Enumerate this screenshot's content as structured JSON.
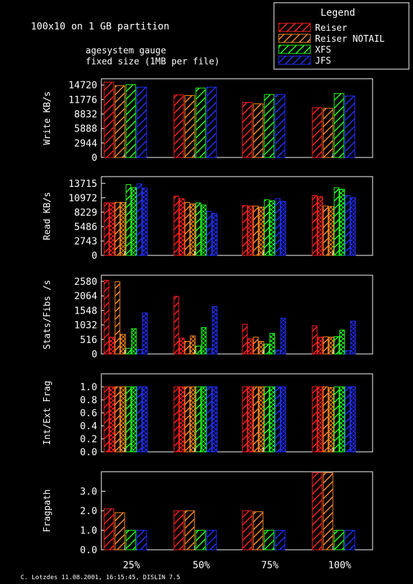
{
  "title": {
    "line1": "100x10 on 1 GB partition",
    "line2": "agesystem gauge",
    "line3": "fixed size (1MB per file)"
  },
  "footer": "C. Lotzdes 11.08.2001, 16:15:45, DISLIN 7.5",
  "legend": {
    "title": "Legend",
    "entries": [
      {
        "label": "Reiser",
        "color": "#ff2020"
      },
      {
        "label": "Reiser NOTAIL",
        "color": "#ff8a20"
      },
      {
        "label": "XFS",
        "color": "#20ff20"
      },
      {
        "label": "JFS",
        "color": "#2030ff"
      }
    ]
  },
  "chart_data": [
    {
      "type": "bar",
      "ylabel": "Write KB/s",
      "categories": [
        "25%",
        "50%",
        "75%",
        "100%"
      ],
      "ylim": [
        0,
        16000
      ],
      "yticks": [
        "0",
        "2944",
        "5888",
        "8832",
        "11776",
        "14720"
      ],
      "ytick_values": [
        0,
        2944,
        5888,
        8832,
        11776,
        14720
      ],
      "series": [
        {
          "name": "Reiser",
          "values": [
            [
              15300
            ]
          ]
        },
        {
          "name": "Reiser NOTAIL",
          "values": [
            [
              14600
            ]
          ]
        },
        {
          "name": "XFS",
          "values": [
            [
              14800
            ]
          ]
        },
        {
          "name": "JFS",
          "values": [
            [
              14300
            ]
          ]
        }
      ],
      "pairs": [
        [
          [
            15300
          ],
          [
            14600
          ],
          [
            14800
          ],
          [
            14300
          ]
        ],
        [
          [
            12700
          ],
          [
            12600
          ],
          [
            14100
          ],
          [
            14300
          ]
        ],
        [
          [
            11200
          ],
          [
            10900
          ],
          [
            12800
          ],
          [
            12800
          ]
        ],
        [
          [
            10100
          ],
          [
            10000
          ],
          [
            13000
          ],
          [
            12500
          ]
        ]
      ]
    },
    {
      "type": "bar",
      "ylabel": "Read KB/s",
      "categories": [
        "25%",
        "50%",
        "75%",
        "100%"
      ],
      "ylim": [
        0,
        15000
      ],
      "yticks": [
        "0",
        "2743",
        "5486",
        "8229",
        "10972",
        "13715"
      ],
      "ytick_values": [
        0,
        2743,
        5486,
        8229,
        10972,
        13715
      ],
      "pairs": [
        [
          [
            10000,
            10000
          ],
          [
            10100,
            10100
          ],
          [
            13500,
            12900
          ],
          [
            13600,
            12800
          ]
        ],
        [
          [
            11300,
            10800
          ],
          [
            10100,
            9800
          ],
          [
            10000,
            9600
          ],
          [
            8400,
            8000
          ]
        ],
        [
          [
            9500,
            9400
          ],
          [
            9400,
            9200
          ],
          [
            10600,
            10400
          ],
          [
            10800,
            10300
          ]
        ],
        [
          [
            11400,
            11200
          ],
          [
            9400,
            9300
          ],
          [
            12900,
            12600
          ],
          [
            11400,
            11000
          ]
        ]
      ]
    },
    {
      "type": "bar",
      "ylabel": "Stats/Fibs /s",
      "categories": [
        "25%",
        "50%",
        "75%",
        "100%"
      ],
      "ylim": [
        0,
        2800
      ],
      "yticks": [
        "0",
        "516",
        "1032",
        "1548",
        "2064",
        "2580"
      ],
      "ytick_values": [
        0,
        516,
        1032,
        1548,
        2064,
        2580
      ],
      "pairs": [
        [
          [
            2620,
            600
          ],
          [
            2570,
            700
          ],
          [
            200,
            900
          ],
          [
            160,
            1460
          ]
        ],
        [
          [
            2050,
            560
          ],
          [
            450,
            640
          ],
          [
            280,
            940
          ],
          [
            190,
            1690
          ]
        ],
        [
          [
            1060,
            540
          ],
          [
            600,
            450
          ],
          [
            350,
            730
          ],
          [
            140,
            1270
          ]
        ],
        [
          [
            1000,
            600
          ],
          [
            610,
            600
          ],
          [
            620,
            850
          ],
          [
            120,
            1170
          ]
        ]
      ]
    },
    {
      "type": "bar",
      "ylabel": "Int/Ext Frag",
      "categories": [
        "25%",
        "50%",
        "75%",
        "100%"
      ],
      "ylim": [
        0,
        1.2
      ],
      "yticks": [
        "0.0",
        "0.2",
        "0.4",
        "0.6",
        "0.8",
        "1.0"
      ],
      "ytick_values": [
        0,
        0.2,
        0.4,
        0.6,
        0.8,
        1.0
      ],
      "pairs": [
        [
          [
            1.0,
            1.0
          ],
          [
            1.0,
            1.0
          ],
          [
            1.0,
            1.0
          ],
          [
            1.0,
            1.0
          ]
        ],
        [
          [
            1.0,
            1.0
          ],
          [
            1.0,
            1.0
          ],
          [
            1.0,
            1.0
          ],
          [
            1.0,
            1.0
          ]
        ],
        [
          [
            1.0,
            1.0
          ],
          [
            1.0,
            1.0
          ],
          [
            1.0,
            1.0
          ],
          [
            1.0,
            1.0
          ]
        ],
        [
          [
            1.0,
            1.0
          ],
          [
            1.0,
            0.99
          ],
          [
            1.0,
            1.0
          ],
          [
            1.0,
            1.0
          ]
        ]
      ]
    },
    {
      "type": "bar",
      "ylabel": "Fragpath",
      "categories": [
        "25%",
        "50%",
        "75%",
        "100%"
      ],
      "ylim": [
        0,
        4.0
      ],
      "yticks": [
        "0.0",
        "1.0",
        "2.0",
        "3.0"
      ],
      "ytick_values": [
        0,
        1,
        2,
        3
      ],
      "pairs": [
        [
          [
            2.1
          ],
          [
            1.9
          ],
          [
            1.0
          ],
          [
            1.0
          ]
        ],
        [
          [
            2.0
          ],
          [
            2.0
          ],
          [
            1.0
          ],
          [
            1.0
          ]
        ],
        [
          [
            2.0
          ],
          [
            1.95
          ],
          [
            1.0
          ],
          [
            1.0
          ]
        ],
        [
          [
            3.95
          ],
          [
            3.95
          ],
          [
            1.0
          ],
          [
            1.0
          ]
        ]
      ],
      "show_xticks": true
    }
  ]
}
